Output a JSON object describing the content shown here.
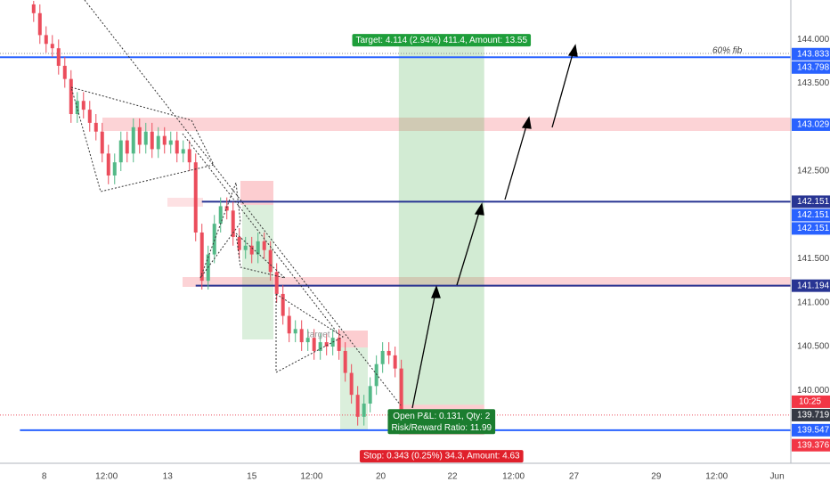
{
  "chart_data": {
    "type": "candlestick",
    "up_color": "#53b987",
    "down_color": "#eb4d5c",
    "xlim": [
      -5.4,
      121.5
    ],
    "xticks": [
      {
        "value": 1.7,
        "label": "8"
      },
      {
        "value": 11.7,
        "label": "12:00"
      },
      {
        "value": 21.5,
        "label": "13"
      },
      {
        "value": 35,
        "label": "15"
      },
      {
        "value": 44.6,
        "label": "12:00"
      },
      {
        "value": 55.7,
        "label": "20"
      },
      {
        "value": 67.2,
        "label": "22"
      },
      {
        "value": 77,
        "label": "12:00"
      },
      {
        "value": 86.7,
        "label": "27"
      },
      {
        "value": 99.9,
        "label": "29"
      },
      {
        "value": 109.6,
        "label": "12:00"
      },
      {
        "value": 119.3,
        "label": "Jun"
      }
    ],
    "ylim": [
      139.17,
      144.45
    ],
    "yticks": [
      {
        "value": 144,
        "label": "144.000"
      },
      {
        "value": 143.5,
        "label": "143.500"
      },
      {
        "value": 142.5,
        "label": "142.500"
      },
      {
        "value": 141.5,
        "label": "141.500"
      },
      {
        "value": 141,
        "label": "141.000"
      },
      {
        "value": 140.5,
        "label": "140.500"
      },
      {
        "value": 140,
        "label": "140.000"
      }
    ],
    "grid": false,
    "open": [
      144.4,
      144.3,
      144.05,
      143.95,
      143.9,
      143.7,
      143.55,
      143.15,
      143.3,
      143.2,
      143.05,
      142.95,
      142.7,
      142.45,
      142.6,
      142.85,
      142.7,
      143.0,
      142.8,
      142.95,
      142.75,
      142.9,
      142.8,
      142.85,
      142.7,
      142.75,
      142.6,
      141.8,
      141.25,
      141.55,
      141.9,
      142.1,
      142.05,
      141.75,
      141.6,
      141.65,
      141.55,
      141.7,
      141.6,
      141.35,
      141.1,
      140.85,
      140.65,
      140.7,
      140.55,
      140.6,
      140.45,
      140.55,
      140.5,
      140.6,
      140.45,
      140.2,
      139.95,
      139.7,
      139.85,
      140.05,
      140.3,
      140.45,
      140.4,
      140.25
    ],
    "high": [
      144.44,
      144.4,
      144.15,
      144.05,
      144.0,
      143.8,
      143.65,
      143.4,
      143.4,
      143.3,
      143.15,
      143.05,
      142.8,
      142.7,
      142.95,
      142.95,
      143.1,
      143.1,
      143.05,
      143.05,
      143.0,
      143.0,
      142.95,
      142.95,
      142.85,
      142.85,
      142.7,
      141.9,
      141.65,
      142.0,
      142.2,
      142.2,
      142.15,
      141.85,
      141.75,
      141.75,
      141.8,
      141.8,
      141.7,
      141.45,
      141.2,
      140.95,
      140.8,
      140.8,
      140.7,
      140.7,
      140.65,
      140.65,
      140.7,
      140.7,
      140.55,
      140.3,
      140.05,
      139.95,
      140.15,
      140.4,
      140.55,
      140.55,
      140.5,
      140.35
    ],
    "low": [
      144.2,
      143.95,
      143.85,
      143.8,
      143.6,
      143.45,
      143.05,
      143.05,
      143.1,
      142.95,
      142.85,
      142.6,
      142.35,
      142.35,
      142.5,
      142.6,
      142.6,
      142.7,
      142.7,
      142.65,
      142.65,
      142.7,
      142.7,
      142.6,
      142.6,
      142.5,
      141.7,
      141.15,
      141.15,
      141.45,
      141.8,
      141.95,
      141.65,
      141.5,
      141.5,
      141.45,
      141.45,
      141.5,
      141.25,
      141.0,
      140.75,
      140.55,
      140.55,
      140.45,
      140.45,
      140.35,
      140.35,
      140.4,
      140.4,
      140.35,
      140.1,
      139.85,
      139.6,
      139.6,
      139.75,
      139.95,
      140.2,
      140.3,
      140.15,
      139.65
    ],
    "close": [
      144.3,
      144.05,
      143.95,
      143.9,
      143.7,
      143.55,
      143.15,
      143.3,
      143.2,
      143.05,
      142.95,
      142.7,
      142.45,
      142.6,
      142.85,
      142.7,
      143.0,
      142.8,
      142.95,
      142.75,
      142.9,
      142.8,
      142.85,
      142.7,
      142.75,
      142.6,
      141.8,
      141.25,
      141.55,
      141.9,
      142.1,
      142.05,
      141.75,
      141.6,
      141.65,
      141.55,
      141.7,
      141.6,
      141.35,
      141.1,
      140.85,
      140.65,
      140.7,
      140.55,
      140.6,
      140.45,
      140.55,
      140.5,
      140.6,
      140.45,
      140.2,
      139.95,
      139.7,
      139.85,
      140.05,
      140.3,
      140.45,
      140.4,
      140.25,
      139.72
    ],
    "levels": [
      {
        "value": 143.798,
        "color": "#2962ff",
        "from": -5.4
      },
      {
        "value": 142.151,
        "color": "#283593",
        "from": 27
      },
      {
        "value": 141.194,
        "color": "#283593",
        "from": 26
      },
      {
        "value": 139.547,
        "color": "#2962ff",
        "from": -2.2
      }
    ],
    "price_labels": [
      {
        "value": 143.833,
        "label": "143.833",
        "bg": "#2962ff"
      },
      {
        "value": 143.798,
        "label": "143.798",
        "bg": "#2962ff"
      },
      {
        "value": 143.029,
        "label": "143.029",
        "bg": "#2962ff"
      },
      {
        "value": 142.151,
        "label": "142.151",
        "bg": "#283593"
      },
      {
        "value": 142.151,
        "label": "142.151",
        "bg": "#2962ff"
      },
      {
        "value": 142.151,
        "label": "142.151",
        "bg": "#2962ff"
      },
      {
        "value": 141.194,
        "label": "141.194",
        "bg": "#283593"
      },
      {
        "value": 139.719,
        "label": "139.719",
        "bg": "#363a45"
      },
      {
        "value": 139.547,
        "label": "139.547",
        "bg": "#2962ff"
      },
      {
        "value": 139.376,
        "label": "139.376",
        "bg": "#f23645"
      }
    ],
    "countdown": "10:25",
    "fib_label": "60% fib",
    "note": "target",
    "position": {
      "entry": 139.837,
      "target": 143.951,
      "stop": 139.494,
      "from": 58.6,
      "to": 72.3,
      "target_label": "Target: 4.114 (2.94%) 411.4, Amount: 13.55",
      "pnl_label": "Open P&L: 0.131, Qty: 2",
      "rr_label": "Risk/Reward Ratio: 11.99",
      "stop_label": "Stop: 0.343 (0.25%) 34.3, Amount: 4.63"
    }
  }
}
